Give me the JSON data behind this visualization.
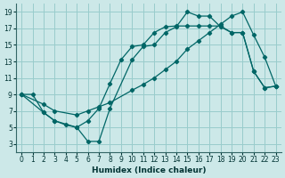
{
  "background_color": "#cce8e8",
  "grid_color": "#99cccc",
  "line_color": "#006666",
  "xlabel": "Humidex (Indice chaleur)",
  "xlim": [
    -0.5,
    23.5
  ],
  "ylim": [
    2,
    20
  ],
  "xticks": [
    0,
    1,
    2,
    3,
    4,
    5,
    6,
    7,
    8,
    9,
    10,
    11,
    12,
    13,
    14,
    15,
    16,
    17,
    18,
    19,
    20,
    21,
    22,
    23
  ],
  "yticks": [
    3,
    5,
    7,
    9,
    11,
    13,
    15,
    17,
    19
  ],
  "line1_x": [
    0,
    1,
    2,
    3,
    4,
    5,
    6,
    7,
    8,
    9,
    10,
    11,
    12,
    13,
    14,
    15,
    16,
    17,
    18,
    19,
    20,
    21,
    22,
    23
  ],
  "line1_y": [
    9.0,
    9.0,
    6.8,
    5.8,
    5.3,
    5.0,
    5.8,
    7.3,
    10.3,
    13.2,
    14.8,
    15.0,
    16.5,
    17.2,
    17.3,
    17.3,
    17.3,
    17.3,
    17.3,
    16.5,
    16.5,
    11.8,
    9.8,
    10.0
  ],
  "line2_x": [
    0,
    2,
    3,
    5,
    6,
    7,
    8,
    10,
    11,
    12,
    13,
    14,
    15,
    16,
    17,
    18,
    19,
    20,
    21,
    22,
    23
  ],
  "line2_y": [
    9.0,
    6.8,
    5.8,
    5.0,
    3.3,
    3.3,
    7.3,
    13.2,
    14.8,
    15.0,
    16.5,
    17.2,
    19.0,
    18.5,
    18.5,
    17.2,
    16.5,
    16.5,
    11.8,
    9.8,
    10.0
  ],
  "line3_x": [
    0,
    2,
    3,
    5,
    6,
    7,
    8,
    10,
    11,
    12,
    13,
    14,
    15,
    16,
    17,
    18,
    19,
    20,
    21,
    22,
    23
  ],
  "line3_y": [
    9.0,
    7.8,
    7.0,
    6.5,
    7.0,
    7.5,
    8.0,
    9.5,
    10.2,
    11.0,
    12.0,
    13.0,
    14.5,
    15.5,
    16.5,
    17.5,
    18.5,
    19.0,
    16.2,
    13.5,
    10.0
  ]
}
